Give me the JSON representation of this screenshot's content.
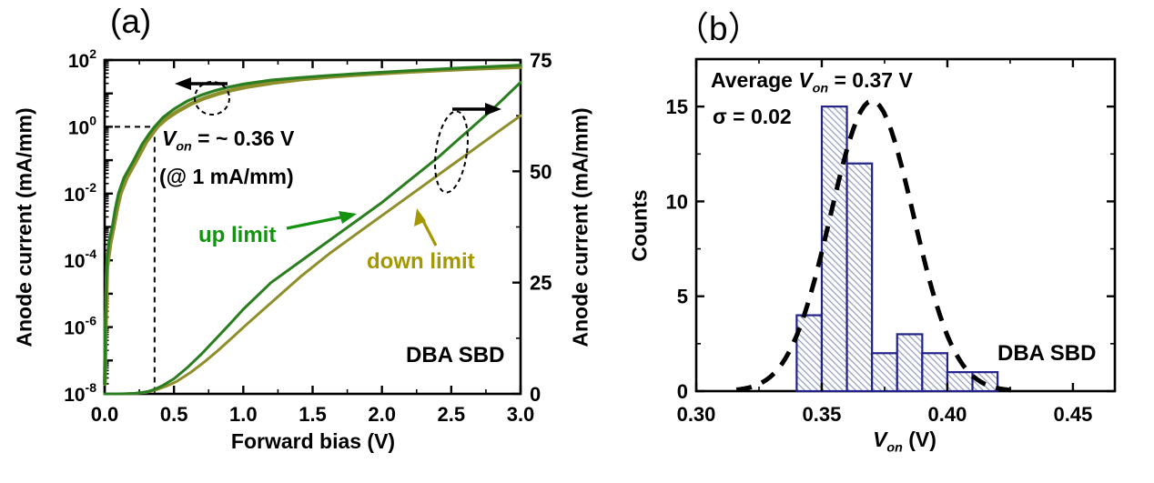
{
  "colors": {
    "up_limit_curve": "#2a7e1f",
    "up_limit_label": "#13930f",
    "down_limit_curve": "#8e8e2a",
    "down_limit_label": "#a39800",
    "axis": "#000000",
    "bar_edge": "#22228a",
    "bar_hatch": "#98a0c4",
    "gauss_curve": "#000000"
  },
  "text": {
    "a": {
      "panel_label": "(a)",
      "xlabel": "Forward bias (V)",
      "ylabel_left": "Anode current (mA/mm)",
      "ylabel_right": "Anode current (mA/mm)",
      "device_label": "DBA SBD",
      "von1": {
        "v": "V",
        "sub": "on",
        "rest": " = ~ 0.36 V"
      },
      "von2": "(@ 1 mA/mm)",
      "up_limit": "up limit",
      "down_limit": "down limit"
    },
    "b": {
      "panel_label": "（b）",
      "xlabel": {
        "v": "V",
        "sub": "on",
        "rest": " (V)"
      },
      "ylabel": "Counts",
      "device_label": "DBA SBD",
      "avg": {
        "pre": "Average ",
        "v": "V",
        "sub": "on",
        "rest": " = 0.37 V"
      },
      "sigma": "σ = 0.02"
    }
  },
  "chart_data": [
    {
      "type": "line",
      "title": "(a) Forward I-V characteristics of DBA SBD (log left axis, linear right axis)",
      "xlabel": "Forward bias (V)",
      "xlim": [
        0.0,
        3.0
      ],
      "x_ticks": [
        {
          "v": 0.0,
          "label": "0.0"
        },
        {
          "v": 0.5,
          "label": "0.5"
        },
        {
          "v": 1.0,
          "label": "1.0"
        },
        {
          "v": 1.5,
          "label": "1.5"
        },
        {
          "v": 2.0,
          "label": "2.0"
        },
        {
          "v": 2.5,
          "label": "2.5"
        },
        {
          "v": 3.0,
          "label": "3.0"
        }
      ],
      "x_minor_step": 0.25,
      "ylabel_left": "Anode current (mA/mm)",
      "ylim_left_log": [
        1e-08,
        100.0
      ],
      "left_labeled_exponents": [
        2,
        0,
        -2,
        -4,
        -6,
        -8
      ],
      "ylabel_right": "Anode current (mA/mm)",
      "ylim_right": [
        0,
        75
      ],
      "right_ticks": [
        {
          "v": 75,
          "label": "75"
        },
        {
          "v": 50,
          "label": "50"
        },
        {
          "v": 25,
          "label": "25"
        },
        {
          "v": 0,
          "label": "0"
        }
      ],
      "right_minor_step": 12.5,
      "von_marker": {
        "V": 0.36,
        "I_mA": 1.0
      },
      "series": [
        {
          "name": "up limit",
          "points_V_mA": [
            [
              0.0008,
              2e-08
            ],
            [
              0.002,
              1e-07
            ],
            [
              0.004,
              6e-07
            ],
            [
              0.007,
              4e-06
            ],
            [
              0.011,
              2e-05
            ],
            [
              0.016,
              0.0001
            ],
            [
              0.03,
              0.00035
            ],
            [
              0.055,
              0.001
            ],
            [
              0.075,
              0.0032
            ],
            [
              0.1,
              0.01
            ],
            [
              0.14,
              0.03
            ],
            [
              0.21,
              0.1
            ],
            [
              0.27,
              0.3
            ],
            [
              0.32,
              0.6
            ],
            [
              0.36,
              1.0
            ],
            [
              0.42,
              1.9
            ],
            [
              0.5,
              3.4
            ],
            [
              0.6,
              6.0
            ],
            [
              0.7,
              9.0
            ],
            [
              0.8,
              12.3
            ],
            [
              0.9,
              15.6
            ],
            [
              1.0,
              19.0
            ],
            [
              1.2,
              25.0
            ],
            [
              1.4,
              29.5
            ],
            [
              1.6,
              34.0
            ],
            [
              1.8,
              38.5
            ],
            [
              2.0,
              43.0
            ],
            [
              2.2,
              48.0
            ],
            [
              2.4,
              53.0
            ],
            [
              2.6,
              58.5
            ],
            [
              2.8,
              64.0
            ],
            [
              3.0,
              70.0
            ]
          ]
        },
        {
          "name": "down limit",
          "points_V_mA": [
            [
              0.0015,
              2e-08
            ],
            [
              0.004,
              1e-07
            ],
            [
              0.007,
              8e-07
            ],
            [
              0.012,
              6e-06
            ],
            [
              0.018,
              6e-05
            ],
            [
              0.04,
              0.0003
            ],
            [
              0.065,
              0.001
            ],
            [
              0.09,
              0.0035
            ],
            [
              0.115,
              0.01
            ],
            [
              0.16,
              0.03
            ],
            [
              0.23,
              0.1
            ],
            [
              0.3,
              0.35
            ],
            [
              0.38,
              1.0
            ],
            [
              0.45,
              1.8
            ],
            [
              0.52,
              2.8
            ],
            [
              0.62,
              4.8
            ],
            [
              0.72,
              7.2
            ],
            [
              0.82,
              9.8
            ],
            [
              0.92,
              12.6
            ],
            [
              1.02,
              15.5
            ],
            [
              1.22,
              21.0
            ],
            [
              1.42,
              26.5
            ],
            [
              1.62,
              31.5
            ],
            [
              1.82,
              36.0
            ],
            [
              2.02,
              40.5
            ],
            [
              2.22,
              45.0
            ],
            [
              2.42,
              49.5
            ],
            [
              2.62,
              54.0
            ],
            [
              2.82,
              58.5
            ],
            [
              3.0,
              62.5
            ]
          ]
        }
      ]
    },
    {
      "type": "bar",
      "title": "(b) Von distribution histogram of DBA SBD with Gaussian fit",
      "xlabel": "Von (V)",
      "ylabel": "Counts",
      "xlim": [
        0.3,
        0.4667
      ],
      "x_ticks": [
        {
          "v": 0.3,
          "label": "0.30"
        },
        {
          "v": 0.35,
          "label": "0.35"
        },
        {
          "v": 0.4,
          "label": "0.40"
        },
        {
          "v": 0.45,
          "label": "0.45"
        }
      ],
      "x_minor_step": 0.025,
      "ylim": [
        0,
        17.5
      ],
      "y_ticks": [
        {
          "v": 15,
          "label": "15"
        },
        {
          "v": 10,
          "label": "10"
        },
        {
          "v": 5,
          "label": "5"
        },
        {
          "v": 0,
          "label": "0"
        }
      ],
      "y_minor_step": 2.5,
      "bin_width": 0.01,
      "bin_start": 0.34,
      "bin_edges": [
        0.34,
        0.35,
        0.36,
        0.37,
        0.38,
        0.39,
        0.4,
        0.41,
        0.42
      ],
      "counts": [
        4,
        15,
        12,
        2,
        3,
        2,
        1,
        1
      ],
      "gauss_fit": {
        "amplitude": 15.3,
        "mean": 0.37,
        "sigma": 0.0165,
        "draw_range": [
          0.316,
          0.428
        ]
      },
      "stats": {
        "average_von_V": 0.37,
        "sigma_V": 0.02
      }
    }
  ]
}
